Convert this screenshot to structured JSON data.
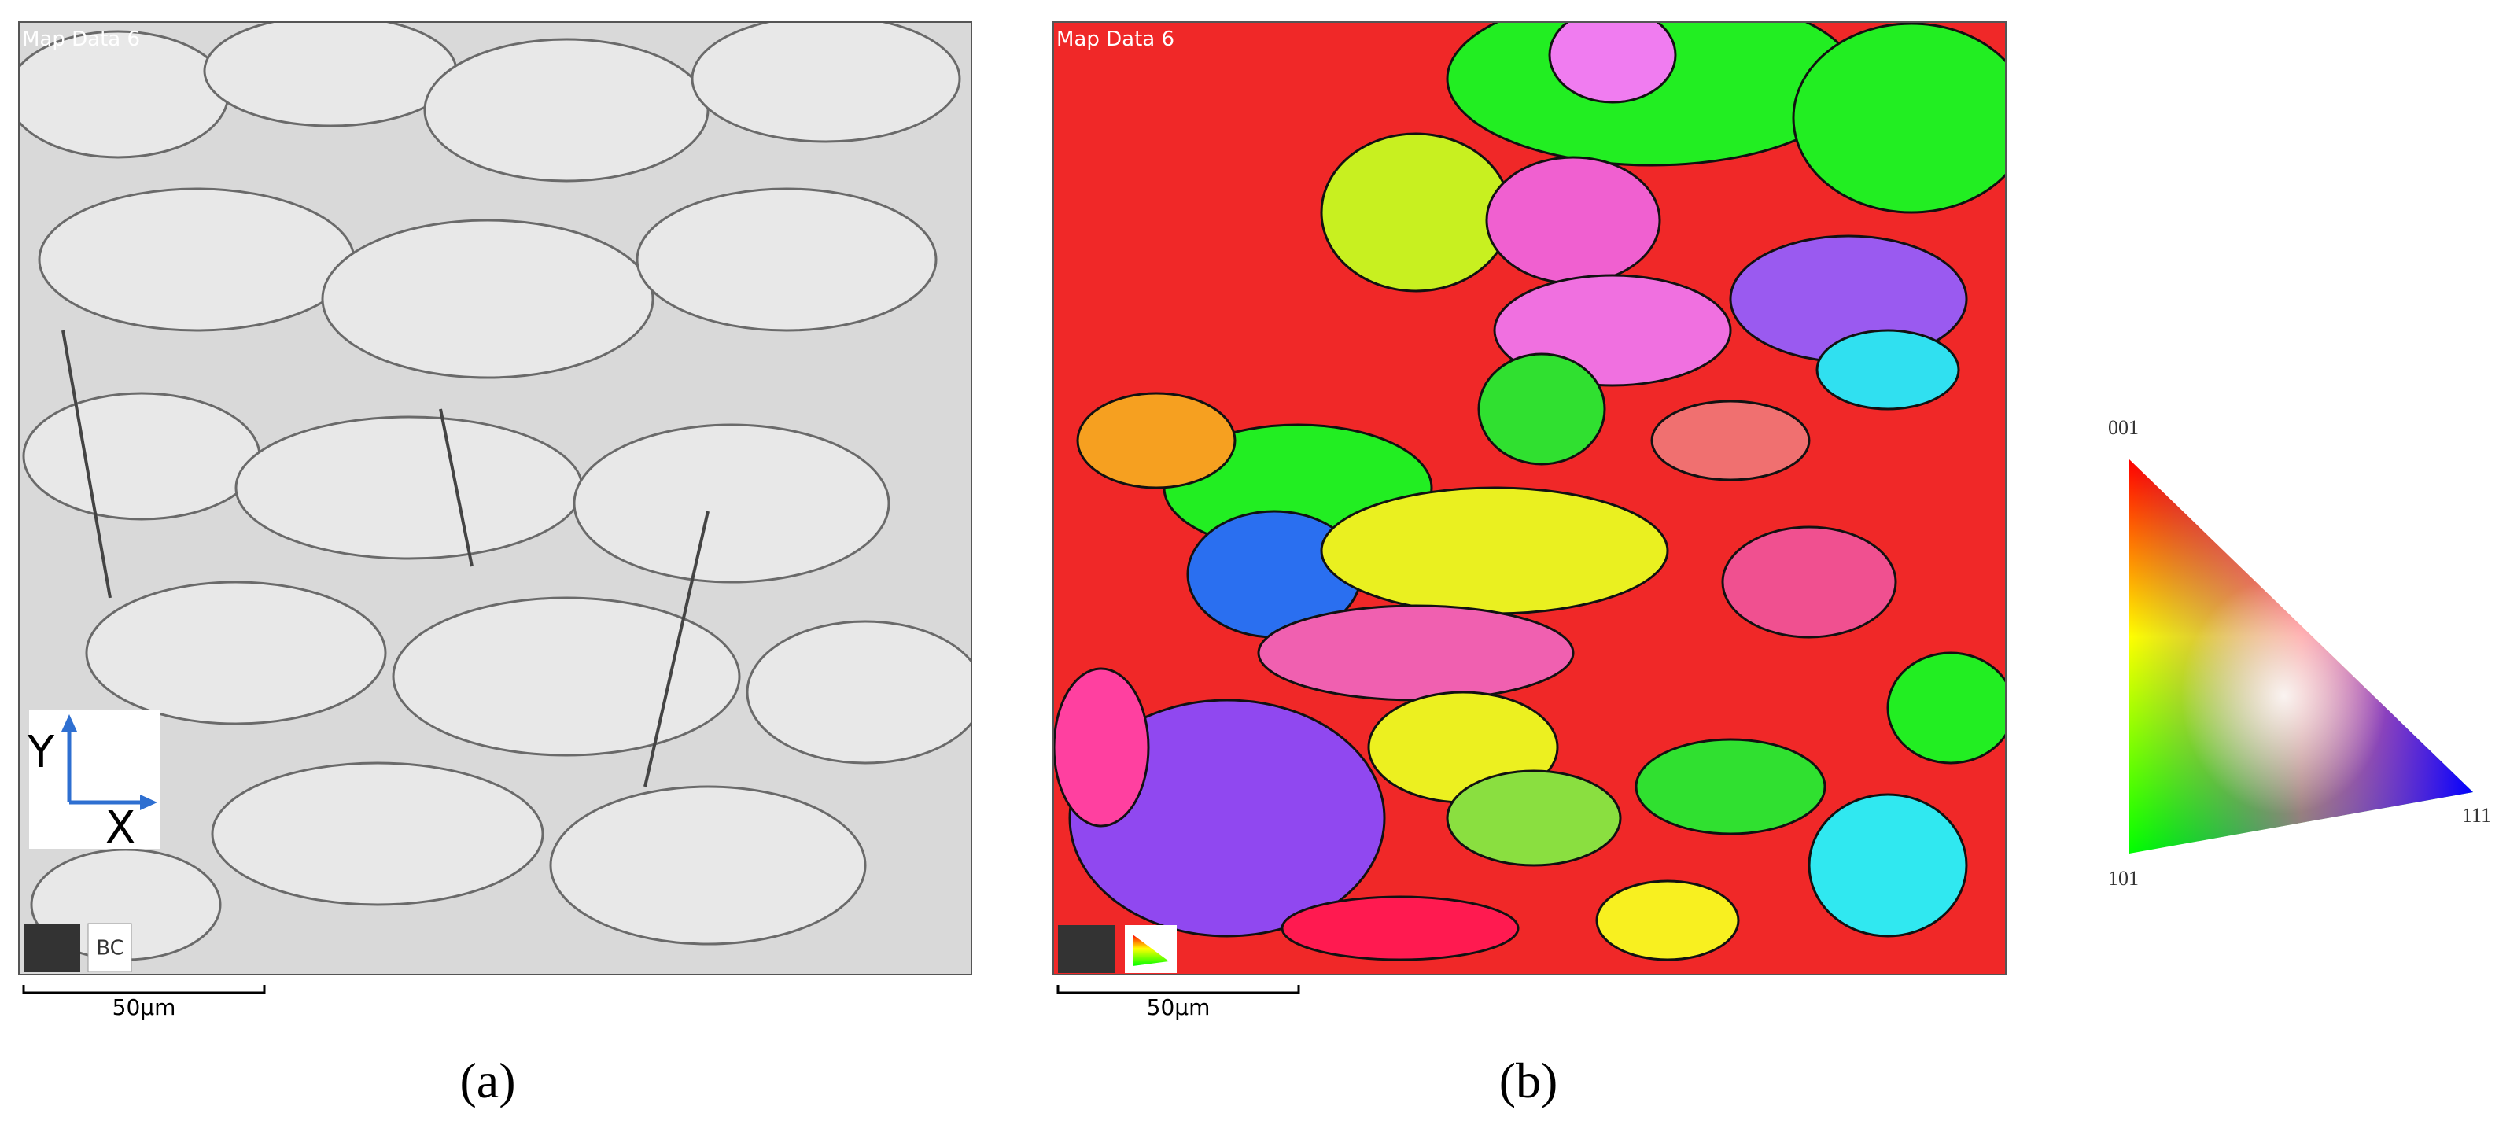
{
  "panels": [
    {
      "map_title": "Map Data 6",
      "axis_y": "Y",
      "axis_x": "X",
      "overlay": "BC",
      "scale_bar": "50µm",
      "label": "(a)"
    },
    {
      "map_title": "Map Data 6",
      "scale_bar": "50µm",
      "label": "(b)"
    }
  ],
  "legend": {
    "top": "001",
    "bottom_left": "101",
    "right": "111"
  }
}
